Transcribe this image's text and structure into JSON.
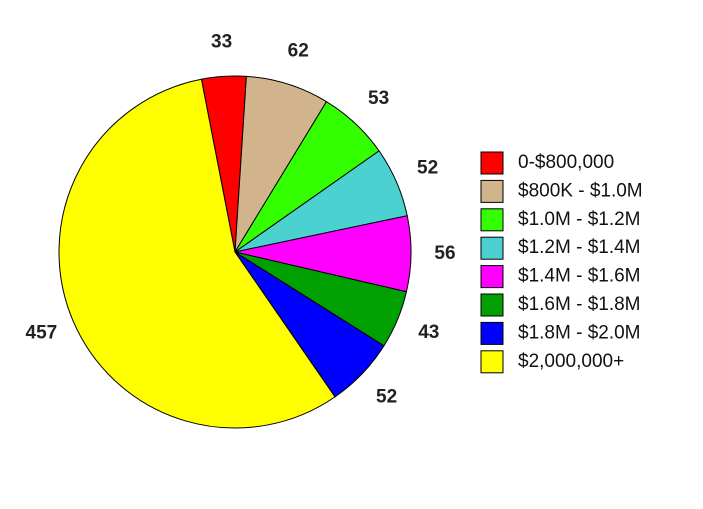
{
  "chart_data": {
    "type": "pie",
    "title": "",
    "start_angle_deg": -101,
    "direction": "clockwise",
    "legend_position": "right",
    "slices": [
      {
        "category": "0-$800,000",
        "value": 33,
        "color": "#ff0000"
      },
      {
        "category": "$800K - $1.0M",
        "value": 62,
        "color": "#d2b48c"
      },
      {
        "category": "$1.0M - $1.2M",
        "value": 53,
        "color": "#33ff00"
      },
      {
        "category": "$1.2M - $1.4M",
        "value": 52,
        "color": "#4cd1d1"
      },
      {
        "category": "$1.4M - $1.6M",
        "value": 56,
        "color": "#ff00ff"
      },
      {
        "category": "$1.6M - $1.8M",
        "value": 43,
        "color": "#00a000"
      },
      {
        "category": "$1.8M - $2.0M",
        "value": 52,
        "color": "#0000ff"
      },
      {
        "category": "$2,000,000+",
        "value": 457,
        "color": "#ffff00"
      }
    ]
  }
}
